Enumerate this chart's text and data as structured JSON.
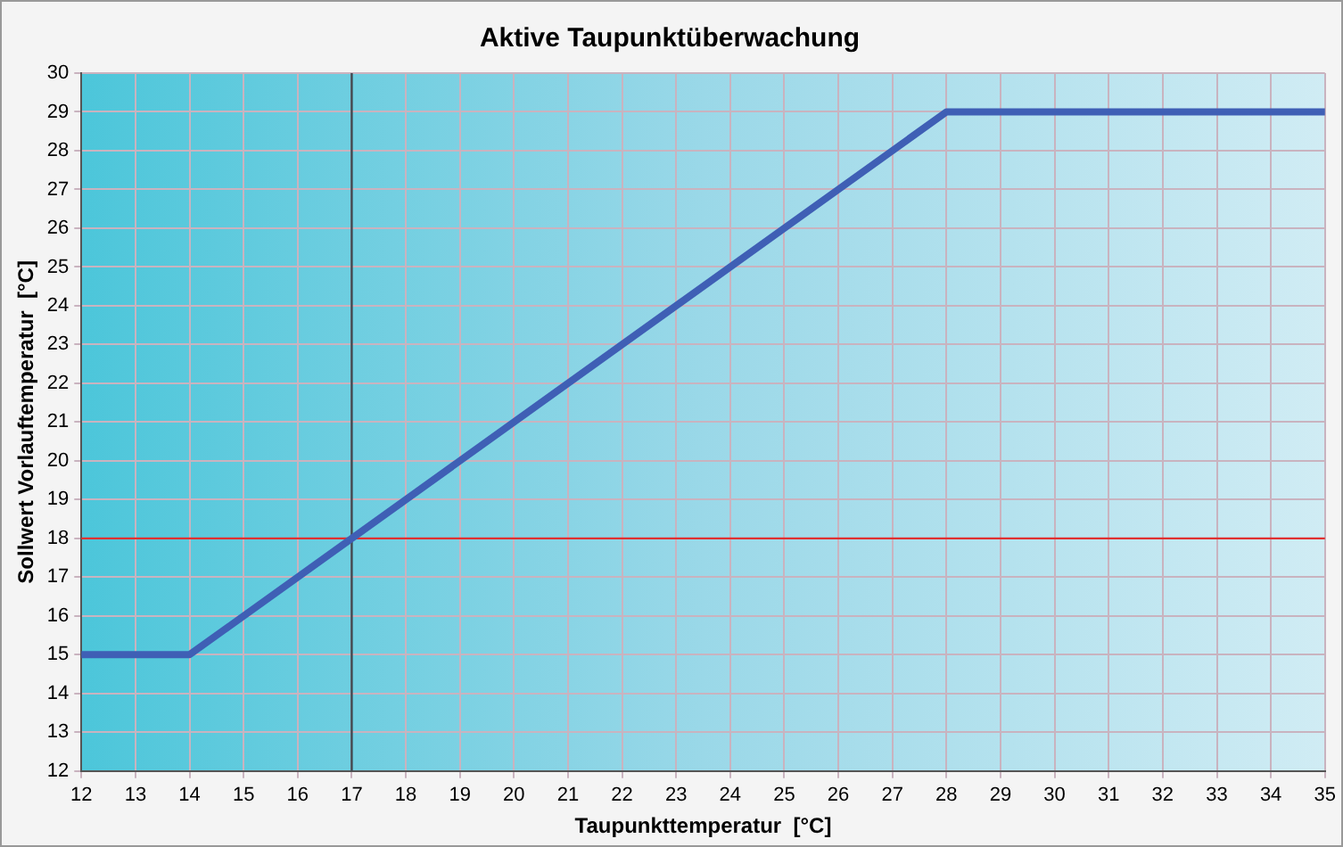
{
  "chart_data": {
    "type": "line",
    "title": "Aktive Taupunktüberwachung",
    "xlabel": "Taupunkttemperatur  [°C]",
    "ylabel": "Sollwert Vorlauftemperatur  [°C]",
    "x": [
      12,
      14,
      28,
      35
    ],
    "series": [
      {
        "color": "#3f5fb5",
        "values": [
          15,
          15,
          29,
          29
        ]
      }
    ],
    "xlim": [
      12,
      35
    ],
    "xticks": [
      12,
      13,
      14,
      15,
      16,
      17,
      18,
      19,
      20,
      21,
      22,
      23,
      24,
      25,
      26,
      27,
      28,
      29,
      30,
      31,
      32,
      33,
      34,
      35
    ],
    "ylim": [
      12,
      30
    ],
    "yticks": [
      12,
      13,
      14,
      15,
      16,
      17,
      18,
      19,
      20,
      21,
      22,
      23,
      24,
      25,
      26,
      27,
      28,
      29,
      30
    ],
    "ref_lines": [
      {
        "axis": "x",
        "value": 17,
        "color": "#404850"
      },
      {
        "axis": "y",
        "value": 18,
        "color": "#e03030"
      }
    ],
    "grid": true,
    "legend": false,
    "marker": "none",
    "line_style": "solid"
  }
}
